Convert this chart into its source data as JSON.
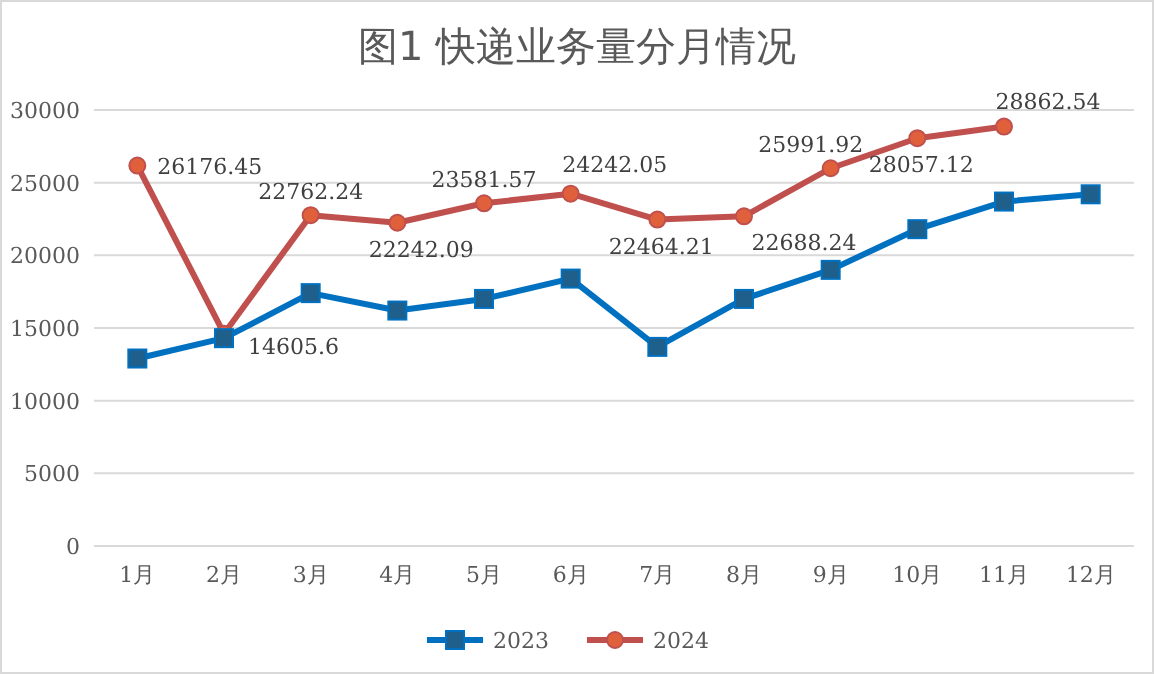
{
  "chart_data": {
    "type": "line",
    "title": "图1 快递业务量分月情况",
    "categories": [
      "1月",
      "2月",
      "3月",
      "4月",
      "5月",
      "6月",
      "7月",
      "8月",
      "9月",
      "10月",
      "11月",
      "12月"
    ],
    "series": [
      {
        "name": "2023",
        "color": "#0070c0",
        "marker": "square",
        "values": [
          12900,
          14300,
          17400,
          16200,
          17000,
          18400,
          13700,
          17000,
          19000,
          21800,
          23700,
          24200
        ]
      },
      {
        "name": "2024",
        "color": "#c0504d",
        "marker": "circle",
        "values": [
          26176.45,
          14605.6,
          22762.24,
          22242.09,
          23581.57,
          24242.05,
          22464.21,
          22688.24,
          25991.92,
          28057.12,
          28862.54,
          null
        ],
        "value_labels": [
          "26176.45",
          "14605.6",
          "22762.24",
          "22242.09",
          "23581.57",
          "24242.05",
          "22464.21",
          "22688.24",
          "25991.92",
          "28057.12",
          "28862.54",
          null
        ]
      }
    ],
    "ylim": [
      0,
      30000
    ],
    "yticks": [
      0,
      5000,
      10000,
      15000,
      20000,
      25000,
      30000
    ],
    "grid": "y",
    "legend": "bottom",
    "line_style": "solid"
  }
}
